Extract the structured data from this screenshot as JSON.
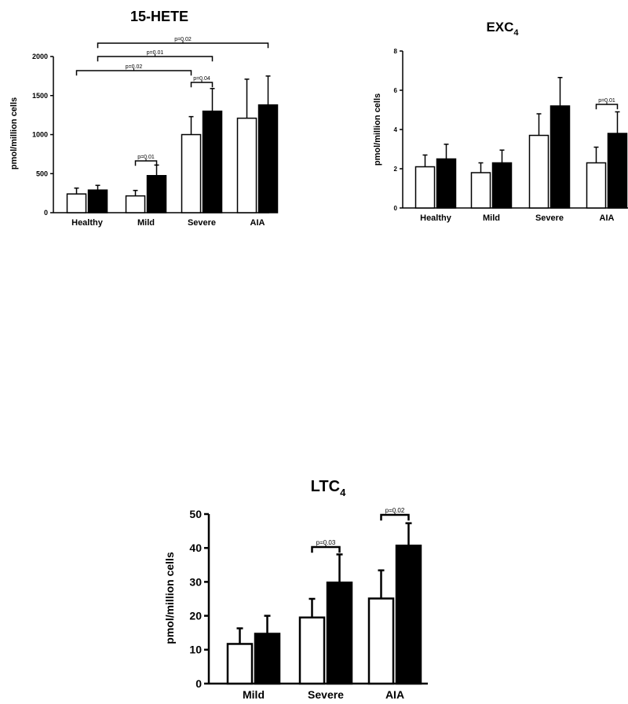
{
  "chart_data": [
    {
      "type": "bar",
      "title": "15-HETE",
      "ylabel": "pmol/million cells",
      "ylim": [
        0,
        2000
      ],
      "yticks": [
        0,
        500,
        1000,
        1500,
        2000
      ],
      "categories": [
        "Healthy",
        "Mild",
        "Severe",
        "AIA"
      ],
      "series": [
        {
          "values": [
            240,
            215,
            1000,
            1210
          ],
          "errors": [
            75,
            70,
            230,
            500
          ],
          "fill": "#ffffff"
        },
        {
          "values": [
            290,
            475,
            1300,
            1380
          ],
          "errors": [
            60,
            135,
            290,
            370
          ],
          "fill": "#000000"
        }
      ],
      "comparisons": [
        {
          "label": "p=0.01",
          "from": [
            1,
            0
          ],
          "to": [
            1,
            1
          ]
        },
        {
          "label": "p=0.04",
          "from": [
            2,
            0
          ],
          "to": [
            2,
            1
          ]
        },
        {
          "label": "p=0.02",
          "from": [
            0,
            0
          ],
          "to": [
            2,
            0
          ]
        },
        {
          "label": "p=0.01",
          "from": [
            0,
            1
          ],
          "to": [
            2,
            1
          ]
        },
        {
          "label": "p=0.02",
          "from": [
            0,
            1
          ],
          "to": [
            3,
            1
          ]
        }
      ]
    },
    {
      "type": "bar",
      "title": "EXC",
      "title_sub": "4",
      "ylabel": "pmol/million cells",
      "ylim": [
        0,
        8
      ],
      "yticks": [
        0,
        2,
        4,
        6,
        8
      ],
      "categories": [
        "Healthy",
        "Mild",
        "Severe",
        "AIA"
      ],
      "series": [
        {
          "values": [
            2.1,
            1.8,
            3.7,
            2.3
          ],
          "errors": [
            0.6,
            0.5,
            1.1,
            0.8
          ],
          "fill": "#ffffff"
        },
        {
          "values": [
            2.5,
            2.3,
            5.2,
            3.8
          ],
          "errors": [
            0.75,
            0.65,
            1.45,
            1.1
          ],
          "fill": "#000000"
        }
      ],
      "comparisons": [
        {
          "label": "p=0.01",
          "from": [
            3,
            0
          ],
          "to": [
            3,
            1
          ]
        }
      ]
    },
    {
      "type": "bar",
      "title": "LTC",
      "title_sub": "4",
      "ylabel": "pmol/million cells",
      "ylim": [
        0,
        50
      ],
      "yticks": [
        0,
        10,
        20,
        30,
        40,
        50
      ],
      "categories": [
        "Mild",
        "Severe",
        "AIA"
      ],
      "series": [
        {
          "values": [
            11.7,
            19.5,
            25.1
          ],
          "errors": [
            4.6,
            5.5,
            8.3
          ],
          "fill": "#ffffff"
        },
        {
          "values": [
            14.7,
            29.8,
            40.7
          ],
          "errors": [
            5.3,
            8.3,
            6.6
          ],
          "fill": "#000000"
        }
      ],
      "comparisons": [
        {
          "label": "p=0.03",
          "from": [
            1,
            0
          ],
          "to": [
            1,
            1
          ]
        },
        {
          "label": "p=0.02",
          "from": [
            2,
            0
          ],
          "to": [
            2,
            1
          ]
        }
      ]
    }
  ]
}
